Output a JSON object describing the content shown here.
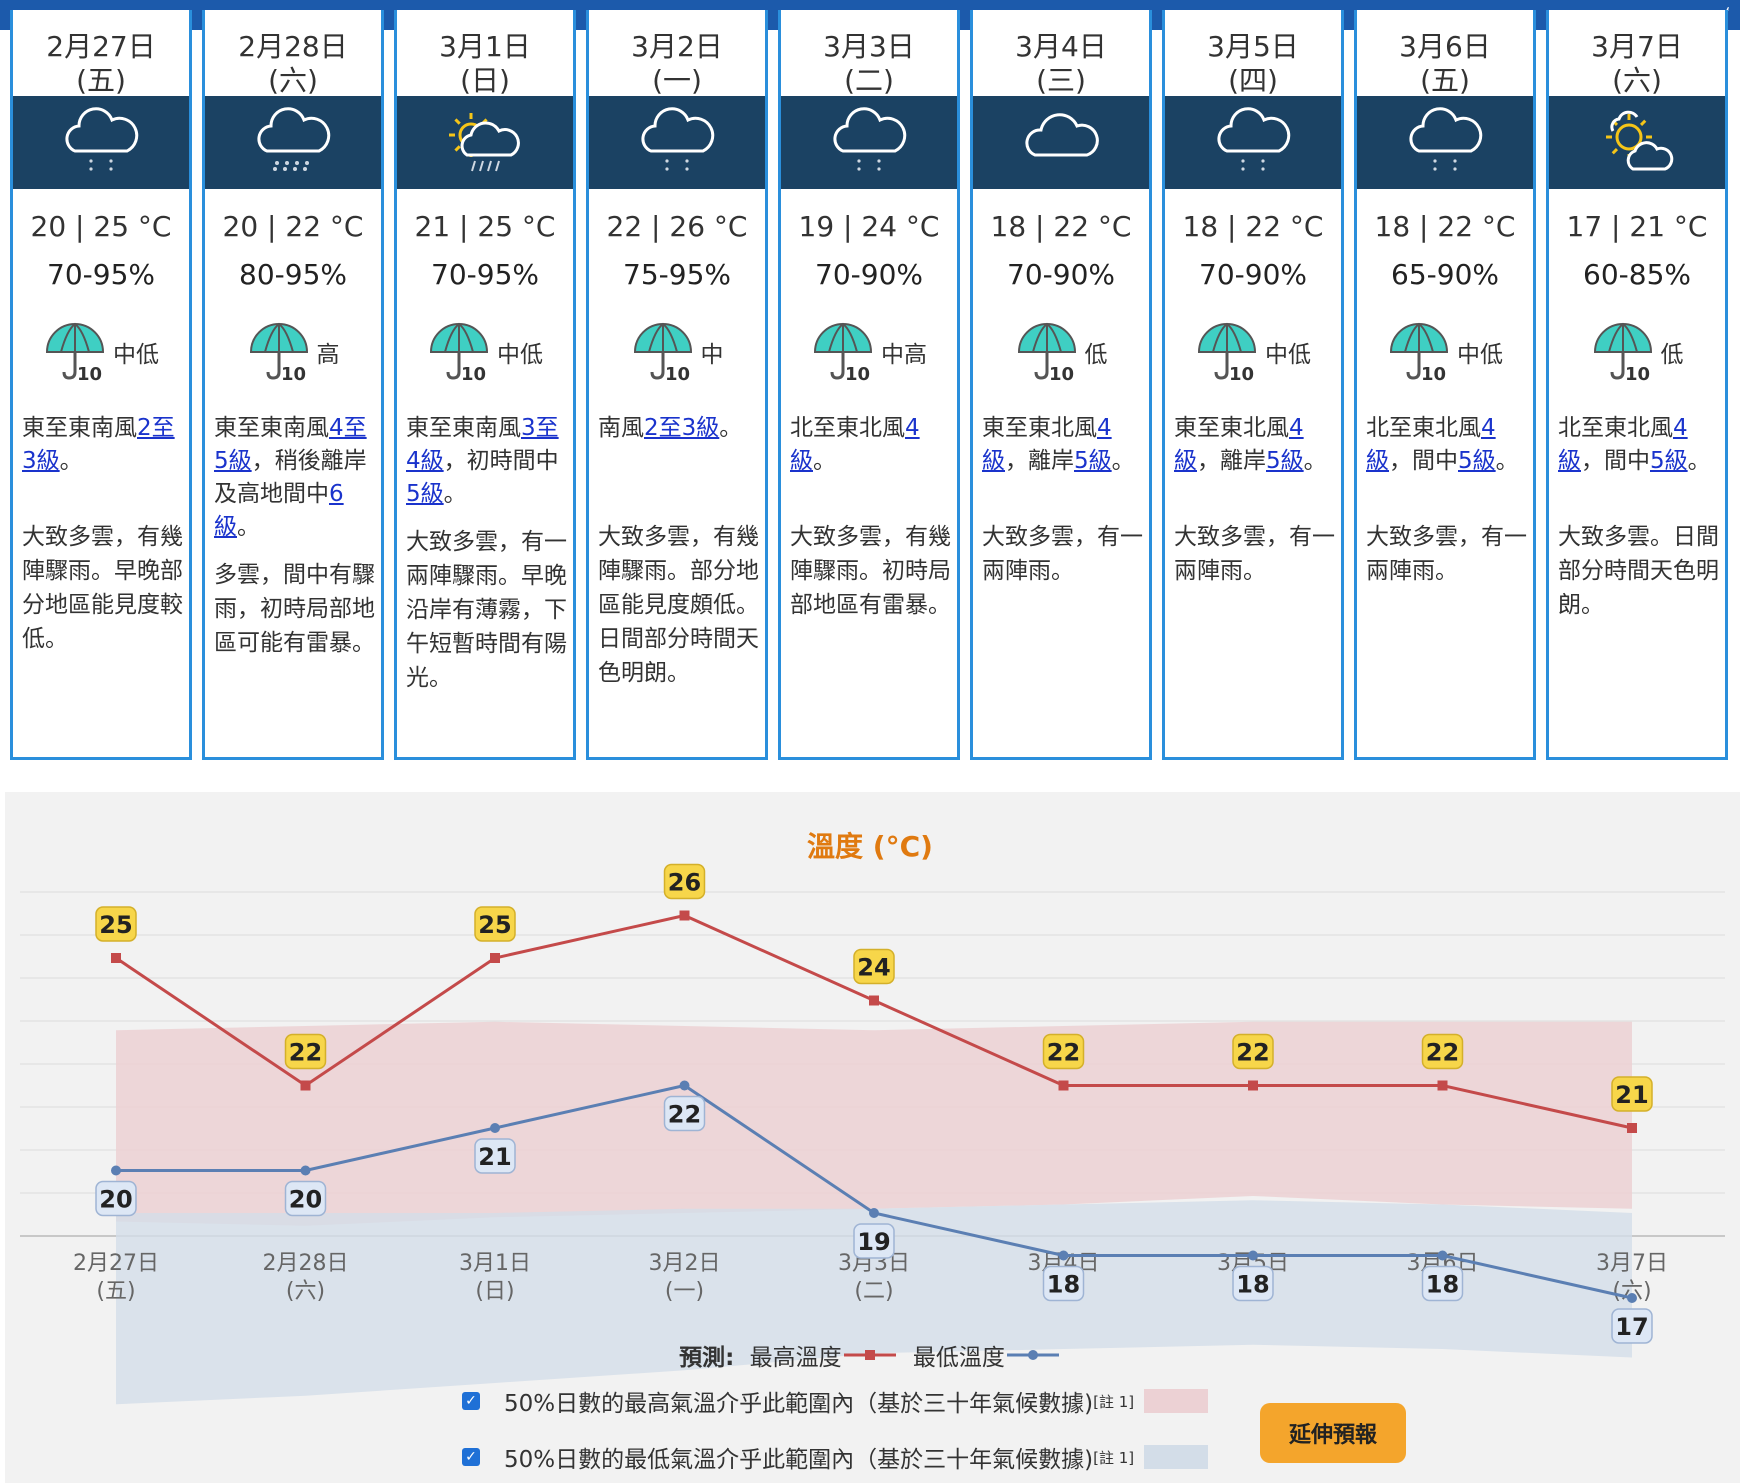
{
  "colors": {
    "accent": "#2a8fdc",
    "icon_band": "#1b4263",
    "max_line": "#c44a4a",
    "min_line": "#5b7fb3",
    "max_band": "#ecd1d4",
    "min_band": "#d3dde8",
    "title": "#e07a10",
    "button": "#f4a52c"
  },
  "topbar": {
    "corner": "،"
  },
  "days": [
    {
      "date": "2月27日",
      "dow": "(五)",
      "icon": "rain-icon",
      "temp": "20 | 25 °C",
      "humidity": "70-95%",
      "psr": "中低",
      "wind": [
        {
          "t": "東至東南風"
        },
        {
          "t": "2至3級",
          "link": true
        },
        {
          "t": "。"
        }
      ],
      "desc": "大致多雲，有幾陣驟雨。早晚部分地區能見度較低。",
      "desc_top": 510
    },
    {
      "date": "2月28日",
      "dow": "(六)",
      "icon": "heavy-rain-icon",
      "temp": "20 | 22 °C",
      "humidity": "80-95%",
      "psr": "高",
      "wind": [
        {
          "t": "東至東南風"
        },
        {
          "t": "4至5級",
          "link": true
        },
        {
          "t": "，稍後離岸及高地間中"
        },
        {
          "t": "6級",
          "link": true
        },
        {
          "t": "。"
        }
      ],
      "desc": "多雲，間中有驟雨，初時局部地區可能有雷暴。",
      "desc_top": 548
    },
    {
      "date": "3月1日",
      "dow": "(日)",
      "icon": "sun-rain-icon",
      "temp": "21 | 25 °C",
      "humidity": "70-95%",
      "psr": "中低",
      "wind": [
        {
          "t": "東至東南風"
        },
        {
          "t": "3至4級",
          "link": true
        },
        {
          "t": "，初時間中"
        },
        {
          "t": "5級",
          "link": true
        },
        {
          "t": "。"
        }
      ],
      "desc": "大致多雲，有一兩陣驟雨。早晚沿岸有薄霧，下午短暫時間有陽光。",
      "desc_top": 515
    },
    {
      "date": "3月2日",
      "dow": "(一)",
      "icon": "rain-icon",
      "temp": "22 | 26 °C",
      "humidity": "75-95%",
      "psr": "中",
      "wind": [
        {
          "t": "南風"
        },
        {
          "t": "2至3級",
          "link": true
        },
        {
          "t": "。"
        }
      ],
      "desc": "大致多雲，有幾陣驟雨。部分地區能見度頗低。日間部分時間天色明朗。",
      "desc_top": 510
    },
    {
      "date": "3月3日",
      "dow": "(二)",
      "icon": "rain-icon",
      "temp": "19 | 24 °C",
      "humidity": "70-90%",
      "psr": "中高",
      "wind": [
        {
          "t": "北至東北風"
        },
        {
          "t": "4級",
          "link": true
        },
        {
          "t": "。"
        }
      ],
      "desc": "大致多雲，有幾陣驟雨。初時局部地區有雷暴。",
      "desc_top": 510
    },
    {
      "date": "3月4日",
      "dow": "(三)",
      "icon": "cloud-icon",
      "temp": "18 | 22 °C",
      "humidity": "70-90%",
      "psr": "低",
      "wind": [
        {
          "t": "東至東北風"
        },
        {
          "t": "4級",
          "link": true
        },
        {
          "t": "，離岸"
        },
        {
          "t": "5級",
          "link": true
        },
        {
          "t": "。"
        }
      ],
      "desc": "大致多雲，有一兩陣雨。",
      "desc_top": 510
    },
    {
      "date": "3月5日",
      "dow": "(四)",
      "icon": "rain-icon",
      "temp": "18 | 22 °C",
      "humidity": "70-90%",
      "psr": "中低",
      "wind": [
        {
          "t": "東至東北風"
        },
        {
          "t": "4級",
          "link": true
        },
        {
          "t": "，離岸"
        },
        {
          "t": "5級",
          "link": true
        },
        {
          "t": "。"
        }
      ],
      "desc": "大致多雲，有一兩陣雨。",
      "desc_top": 510
    },
    {
      "date": "3月6日",
      "dow": "(五)",
      "icon": "rain-icon",
      "temp": "18 | 22 °C",
      "humidity": "65-90%",
      "psr": "中低",
      "wind": [
        {
          "t": "北至東北風"
        },
        {
          "t": "4級",
          "link": true
        },
        {
          "t": "，間中"
        },
        {
          "t": "5級",
          "link": true
        },
        {
          "t": "。"
        }
      ],
      "desc": "大致多雲，有一兩陣雨。",
      "desc_top": 510
    },
    {
      "date": "3月7日",
      "dow": "(六)",
      "icon": "sun-cloud-icon",
      "temp": "17 | 21 °C",
      "humidity": "60-85%",
      "psr": "低",
      "wind": [
        {
          "t": "北至東北風"
        },
        {
          "t": "4級",
          "link": true
        },
        {
          "t": "，間中"
        },
        {
          "t": "5級",
          "link": true
        },
        {
          "t": "。"
        }
      ],
      "desc": "大致多雲。日間部分時間天色明朗。",
      "desc_top": 510
    }
  ],
  "chart_data": {
    "type": "line",
    "title": "溫度 (°C)",
    "categories": [
      [
        "2月27日",
        "(五)"
      ],
      [
        "2月28日",
        "(六)"
      ],
      [
        "3月1日",
        "(日)"
      ],
      [
        "3月2日",
        "(一)"
      ],
      [
        "3月3日",
        "(二)"
      ],
      [
        "3月4日",
        "(三)"
      ],
      [
        "3月5日",
        "(四)"
      ],
      [
        "3月6日",
        "(五)"
      ],
      [
        "3月7日",
        "(六)"
      ]
    ],
    "series": [
      {
        "name": "最高溫度",
        "values": [
          25,
          22,
          25,
          26,
          24,
          22,
          22,
          22,
          21
        ]
      },
      {
        "name": "最低溫度",
        "values": [
          20,
          20,
          21,
          22,
          19,
          18,
          18,
          18,
          17
        ]
      }
    ],
    "bands": [
      {
        "name": "50%日數的最高氣溫介乎此範圍內（基於三十年氣候數據)",
        "low": [
          18.8,
          18.7,
          18.9,
          19.0,
          19.1,
          19.2,
          19.4,
          19.2,
          19.1
        ],
        "high": [
          23.3,
          23.4,
          23.5,
          23.4,
          23.3,
          23.4,
          23.5,
          23.5,
          23.5
        ]
      },
      {
        "name": "50%日數的最低氣溫介乎此範圍內（基於三十年氣候數據)",
        "low": [
          14.5,
          14.7,
          15.0,
          15.3,
          15.7,
          15.8,
          15.9,
          15.8,
          15.6
        ],
        "high": [
          19.0,
          19.0,
          19.0,
          19.1,
          19.1,
          19.2,
          19.3,
          19.2,
          19.0
        ]
      }
    ],
    "ylim": [
      13,
      29
    ],
    "grid": true
  },
  "legend": {
    "prefix": "預測:",
    "max_label": "最高溫度",
    "min_label": "最低溫度"
  },
  "checks": [
    {
      "label": "50%日數的最高氣溫介乎此範圍內（基於三十年氣候數據)",
      "note": "[註 1]"
    },
    {
      "label": "50%日數的最低氣溫介乎此範圍內（基於三十年氣候數據)",
      "note": "[註 1]"
    }
  ],
  "extend_button": "延伸預報"
}
